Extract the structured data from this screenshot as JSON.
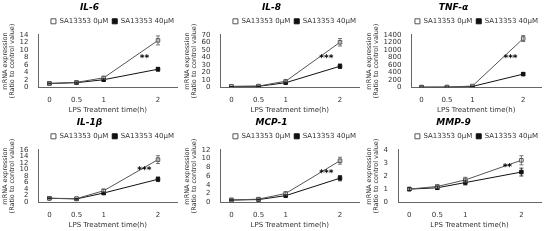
{
  "chart_data": [
    {
      "type": "line",
      "title": "IL-6",
      "x": [
        0,
        0.5,
        1,
        2
      ],
      "xlim": [
        -0.2,
        2.35
      ],
      "xticks": [
        0,
        0.5,
        1,
        2
      ],
      "xlabel": "LPS Treatment time(h)",
      "ylabel": "mRNA expression\n(Ratio to control value)",
      "ylim": [
        0,
        14
      ],
      "yticks": [
        0,
        2,
        4,
        6,
        8,
        10,
        12,
        14
      ],
      "grid": false,
      "legend": "upper right",
      "series": [
        {
          "name": "SA13353 0μM",
          "color": "#555555",
          "marker": "square-open",
          "values": [
            1.0,
            1.3,
            2.5,
            12.5
          ],
          "yerr": [
            0.1,
            0.15,
            0.3,
            1.2
          ]
        },
        {
          "name": "SA13353 40μM",
          "color": "#111111",
          "marker": "square",
          "values": [
            1.0,
            1.2,
            2.0,
            4.8
          ],
          "yerr": [
            0.1,
            0.15,
            0.25,
            0.5
          ]
        }
      ],
      "annotations": [
        {
          "x": 1.75,
          "y": 7.5,
          "text": "**"
        }
      ]
    },
    {
      "type": "line",
      "title": "IL-8",
      "x": [
        0,
        0.5,
        1,
        2
      ],
      "xlim": [
        -0.2,
        2.35
      ],
      "xticks": [
        0,
        0.5,
        1,
        2
      ],
      "xlabel": "LPS Treatment time(h)",
      "ylabel": "mRNA expression\n(Ratio to control value)",
      "ylim": [
        0,
        70
      ],
      "yticks": [
        0,
        10,
        20,
        30,
        40,
        50,
        60,
        70
      ],
      "grid": false,
      "legend": "upper right",
      "series": [
        {
          "name": "SA13353 0μM",
          "color": "#555555",
          "marker": "square-open",
          "values": [
            1.0,
            1.5,
            8.0,
            60.0
          ],
          "yerr": [
            0.1,
            0.2,
            0.8,
            5.0
          ]
        },
        {
          "name": "SA13353 40μM",
          "color": "#111111",
          "marker": "square",
          "values": [
            1.0,
            1.2,
            6.0,
            28.0
          ],
          "yerr": [
            0.1,
            0.2,
            0.6,
            3.0
          ]
        }
      ],
      "annotations": [
        {
          "x": 1.75,
          "y": 38.0,
          "text": "***"
        }
      ]
    },
    {
      "type": "line",
      "title": "TNF-α",
      "x": [
        0,
        0.5,
        1,
        2
      ],
      "xlim": [
        -0.2,
        2.35
      ],
      "xticks": [
        0,
        0.5,
        1,
        2
      ],
      "xlabel": "LPS Treatment time(h)",
      "ylabel": "mRNA expression\n(Ratio to control value)",
      "ylim": [
        0,
        1400
      ],
      "yticks": [
        0,
        200,
        400,
        600,
        800,
        1000,
        1200,
        1400
      ],
      "grid": false,
      "legend": "upper right",
      "series": [
        {
          "name": "SA13353 0μM",
          "color": "#555555",
          "marker": "square-open",
          "values": [
            1.0,
            2.0,
            30.0,
            1300.0
          ],
          "yerr": [
            0.5,
            1.0,
            5.0,
            80.0
          ]
        },
        {
          "name": "SA13353 40μM",
          "color": "#111111",
          "marker": "square",
          "values": [
            1.0,
            1.5,
            20.0,
            350.0
          ],
          "yerr": [
            0.5,
            1.0,
            4.0,
            40.0
          ]
        }
      ],
      "annotations": [
        {
          "x": 1.75,
          "y": 750.0,
          "text": "***"
        }
      ]
    },
    {
      "type": "line",
      "title": "IL-1β",
      "x": [
        0,
        0.5,
        1,
        2
      ],
      "xlim": [
        -0.2,
        2.35
      ],
      "xticks": [
        0,
        0.5,
        1,
        2
      ],
      "xlabel": "LPS Treatment time(h)",
      "ylabel": "mRNA expression\n(Ratio to control value)",
      "ylim": [
        0,
        16
      ],
      "yticks": [
        0,
        2,
        4,
        6,
        8,
        10,
        12,
        14,
        16
      ],
      "grid": false,
      "legend": "upper right",
      "series": [
        {
          "name": "SA13353 0μM",
          "color": "#555555",
          "marker": "square-open",
          "values": [
            1.2,
            1.1,
            3.5,
            13.0
          ],
          "yerr": [
            0.12,
            0.12,
            0.4,
            1.2
          ]
        },
        {
          "name": "SA13353 40μM",
          "color": "#111111",
          "marker": "square",
          "values": [
            1.2,
            1.0,
            2.8,
            7.0
          ],
          "yerr": [
            0.12,
            0.12,
            0.3,
            0.7
          ]
        }
      ],
      "annotations": [
        {
          "x": 1.75,
          "y": 9.5,
          "text": "***"
        }
      ]
    },
    {
      "type": "line",
      "title": "MCP-1",
      "x": [
        0,
        0.5,
        1,
        2
      ],
      "xlim": [
        -0.2,
        2.35
      ],
      "xticks": [
        0,
        0.5,
        1,
        2
      ],
      "xlabel": "LPS Treatment time(h)",
      "ylabel": "mRNA expression\n(Ratio to control value)",
      "ylim": [
        0,
        12
      ],
      "yticks": [
        0,
        2,
        4,
        6,
        8,
        10,
        12
      ],
      "grid": false,
      "legend": "upper right",
      "series": [
        {
          "name": "SA13353 0μM",
          "color": "#555555",
          "marker": "square-open",
          "values": [
            0.5,
            0.7,
            2.0,
            9.5
          ],
          "yerr": [
            0.05,
            0.08,
            0.3,
            0.8
          ]
        },
        {
          "name": "SA13353 40μM",
          "color": "#111111",
          "marker": "square",
          "values": [
            0.5,
            0.6,
            1.5,
            5.5
          ],
          "yerr": [
            0.05,
            0.08,
            0.2,
            0.6
          ]
        }
      ],
      "annotations": [
        {
          "x": 1.75,
          "y": 6.5,
          "text": "***"
        }
      ]
    },
    {
      "type": "line",
      "title": "MMP-9",
      "x": [
        0,
        0.5,
        1,
        2
      ],
      "xlim": [
        -0.2,
        2.35
      ],
      "xticks": [
        0,
        0.5,
        1,
        2
      ],
      "xlabel": "LPS Treatment time(h)",
      "ylabel": "mRNA expression\n(Ratio to control value)",
      "ylim": [
        0,
        4
      ],
      "yticks": [
        0,
        1,
        2,
        3,
        4
      ],
      "grid": false,
      "legend": "upper right",
      "series": [
        {
          "name": "SA13353 0μM",
          "color": "#555555",
          "marker": "square-open",
          "values": [
            1.0,
            1.2,
            1.7,
            3.2
          ],
          "yerr": [
            0.1,
            0.12,
            0.2,
            0.35
          ]
        },
        {
          "name": "SA13353 40μM",
          "color": "#111111",
          "marker": "square",
          "values": [
            1.0,
            1.1,
            1.5,
            2.3
          ],
          "yerr": [
            0.1,
            0.12,
            0.18,
            0.3
          ]
        }
      ],
      "annotations": [
        {
          "x": 1.75,
          "y": 2.65,
          "text": "**"
        }
      ]
    }
  ]
}
